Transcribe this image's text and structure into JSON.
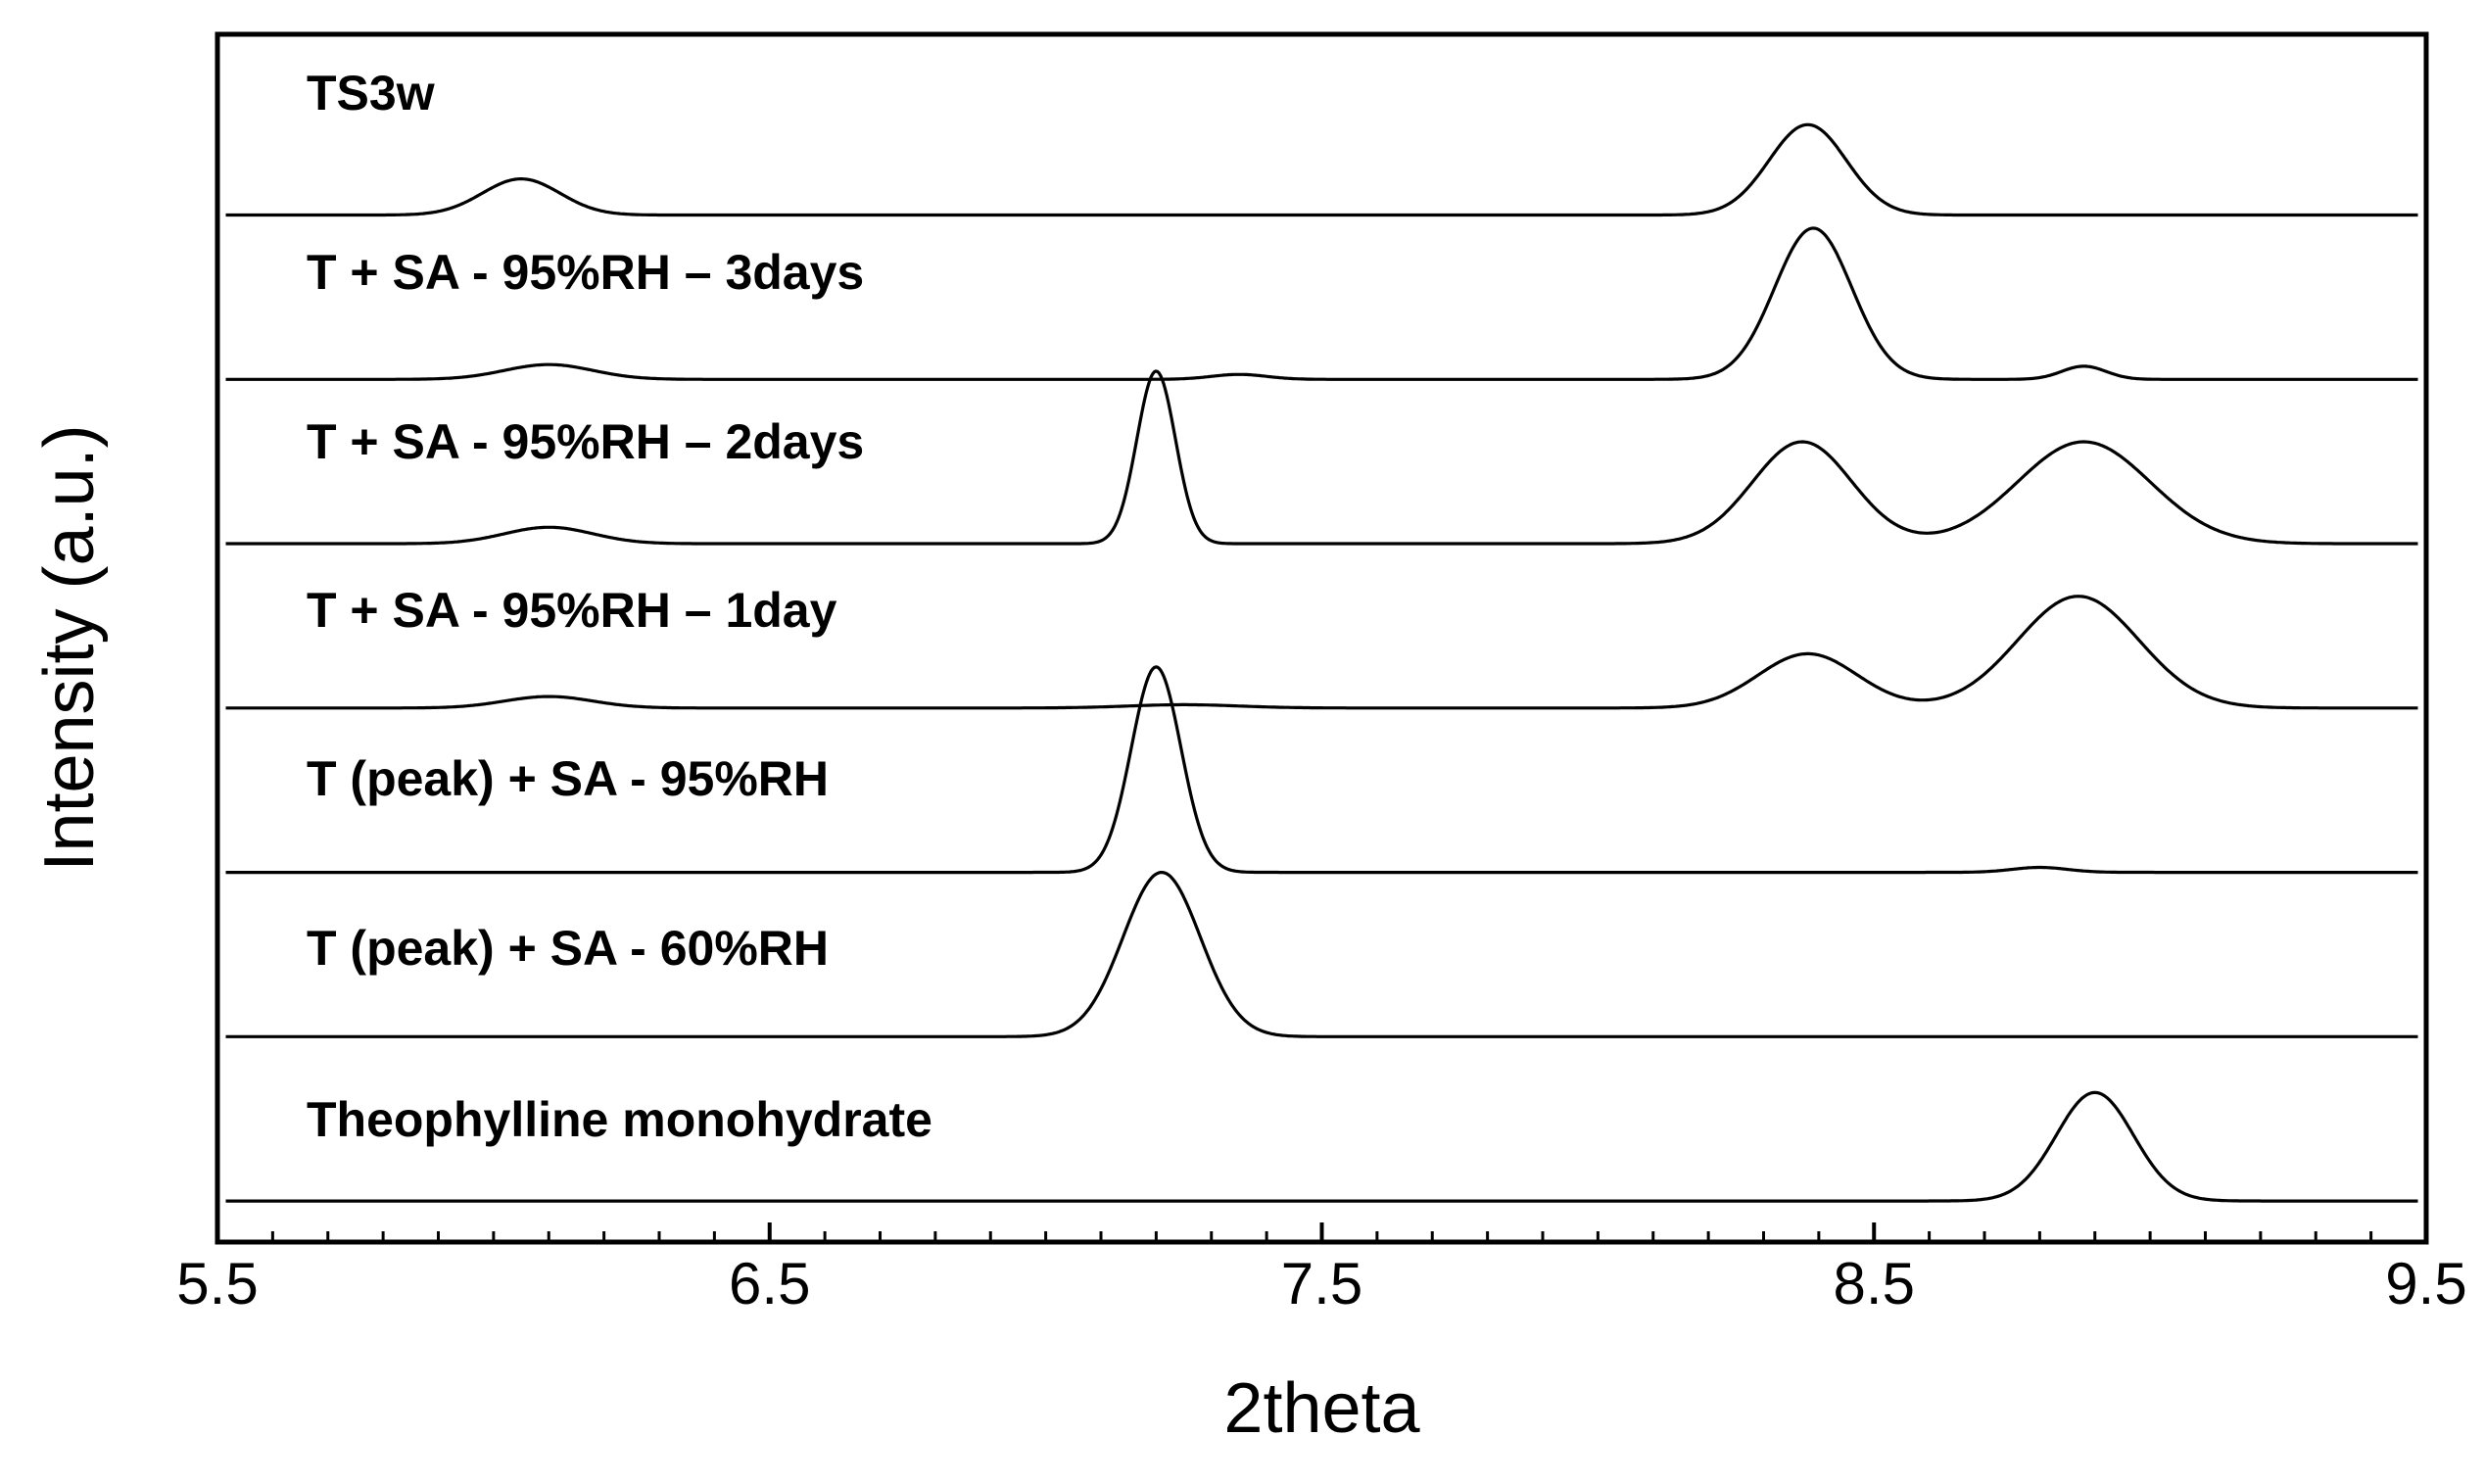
{
  "chart_data": {
    "type": "line",
    "title": "",
    "xlabel": "2theta",
    "ylabel": "Intensity (a.u.)",
    "xlim": [
      5.5,
      9.5
    ],
    "x_ticks": [
      "5.5",
      "6.5",
      "7.5",
      "8.5",
      "9.5"
    ],
    "x_minor_step": 0.1,
    "y_ticks_shown": false,
    "grid": false,
    "legend": "none (labels printed above each stacked trace)",
    "line_color": "#000000",
    "series": [
      {
        "name": "TS3w",
        "baseline": 6.25,
        "peaks": [
          {
            "x": 6.05,
            "height": 0.22,
            "width": 0.07
          },
          {
            "x": 8.38,
            "height": 0.55,
            "width": 0.07
          }
        ]
      },
      {
        "name": "T + SA - 95%RH – 3days",
        "baseline": 5.25,
        "peaks": [
          {
            "x": 6.1,
            "height": 0.09,
            "width": 0.08
          },
          {
            "x": 7.35,
            "height": 0.03,
            "width": 0.05
          },
          {
            "x": 8.39,
            "height": 0.92,
            "width": 0.07
          },
          {
            "x": 8.88,
            "height": 0.08,
            "width": 0.04
          }
        ]
      },
      {
        "name": "T + SA - 95%RH – 2days",
        "baseline": 4.25,
        "peaks": [
          {
            "x": 6.1,
            "height": 0.1,
            "width": 0.08
          },
          {
            "x": 7.2,
            "height": 1.05,
            "width": 0.035
          },
          {
            "x": 8.37,
            "height": 0.62,
            "width": 0.09
          },
          {
            "x": 8.88,
            "height": 0.62,
            "width": 0.12
          }
        ]
      },
      {
        "name": "T + SA - 95%RH – 1day",
        "baseline": 3.25,
        "peaks": [
          {
            "x": 6.1,
            "height": 0.07,
            "width": 0.08
          },
          {
            "x": 7.25,
            "height": 0.02,
            "width": 0.1
          },
          {
            "x": 8.38,
            "height": 0.33,
            "width": 0.09
          },
          {
            "x": 8.87,
            "height": 0.68,
            "width": 0.11
          }
        ]
      },
      {
        "name": "T (peak) + SA - 95%RH",
        "baseline": 2.25,
        "peaks": [
          {
            "x": 7.2,
            "height": 1.25,
            "width": 0.045
          },
          {
            "x": 8.8,
            "height": 0.03,
            "width": 0.05
          }
        ]
      },
      {
        "name": "T (peak) + SA - 60%RH",
        "baseline": 1.25,
        "peaks": [
          {
            "x": 7.21,
            "height": 1.0,
            "width": 0.07
          }
        ]
      },
      {
        "name": "Theophylline monohydrate",
        "baseline": 0.25,
        "peaks": [
          {
            "x": 8.9,
            "height": 0.66,
            "width": 0.07
          }
        ]
      }
    ],
    "ylim": [
      0,
      7.35
    ]
  }
}
